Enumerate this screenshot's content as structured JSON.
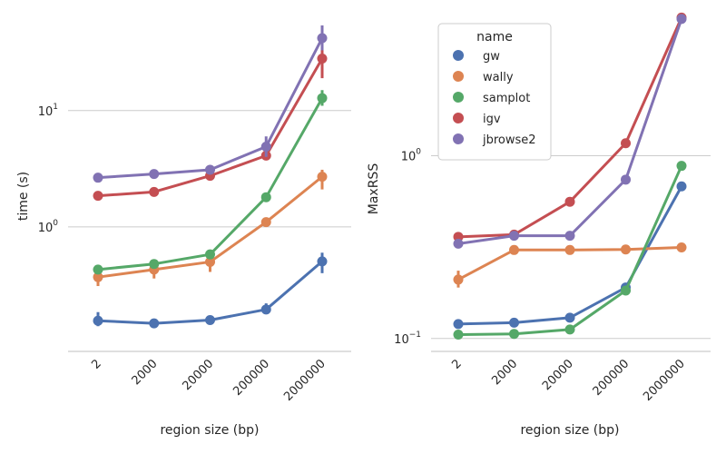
{
  "colors": {
    "gw": "#4c72b0",
    "wally": "#dd8452",
    "samplot": "#55a868",
    "igv": "#c44e52",
    "jbroswe2": "#8172b3",
    "grid": "#cccccc",
    "text": "#262626"
  },
  "chart_data": [
    {
      "type": "line",
      "scale": "log",
      "xlabel": "region size (bp)",
      "ylabel": "time (s)",
      "categories": [
        "2",
        "2000",
        "20000",
        "200000",
        "2000000"
      ],
      "ylim": [
        0.085,
        72
      ],
      "yticks": [
        {
          "value": 1,
          "base": "10",
          "exp": "0"
        },
        {
          "value": 10,
          "base": "10",
          "exp": "1"
        }
      ],
      "grid": "horizontal",
      "series": [
        {
          "name": "gw",
          "color": "#4c72b0",
          "values": [
            0.156,
            0.148,
            0.158,
            0.195,
            0.505
          ],
          "err": [
            [
              0.14,
              0.185
            ],
            null,
            null,
            [
              0.18,
              0.22
            ],
            [
              0.4,
              0.6
            ]
          ]
        },
        {
          "name": "wally",
          "color": "#dd8452",
          "values": [
            0.37,
            0.43,
            0.5,
            1.1,
            2.7
          ],
          "err": [
            [
              0.31,
              0.41
            ],
            [
              0.36,
              0.47
            ],
            [
              0.41,
              0.56
            ],
            [
              1.0,
              1.2
            ],
            [
              2.1,
              3.1
            ]
          ]
        },
        {
          "name": "samplot",
          "color": "#55a868",
          "values": [
            0.43,
            0.48,
            0.58,
            1.8,
            12.8
          ],
          "err": [
            null,
            null,
            null,
            null,
            [
              11.0,
              15.0
            ]
          ]
        },
        {
          "name": "igv",
          "color": "#c44e52",
          "values": [
            1.85,
            2.0,
            2.75,
            4.1,
            28.0
          ],
          "err": [
            null,
            null,
            [
              2.55,
              2.95
            ],
            [
              3.8,
              4.4
            ],
            [
              19.0,
              34.0
            ]
          ]
        },
        {
          "name": "jbrowse2",
          "color": "#8172b3",
          "values": [
            2.65,
            2.85,
            3.1,
            4.9,
            42.0
          ],
          "err": [
            null,
            null,
            [
              2.9,
              3.4
            ],
            [
              4.0,
              6.0
            ],
            [
              33.0,
              54.0
            ]
          ]
        }
      ]
    },
    {
      "type": "line",
      "scale": "log",
      "xlabel": "region size (bp)",
      "ylabel": "MaxRSS",
      "categories": [
        "2",
        "2000",
        "20000",
        "200000",
        "2000000"
      ],
      "ylim": [
        0.085,
        6.2
      ],
      "yticks": [
        {
          "value": 0.1,
          "base": "10",
          "exp": "−1"
        },
        {
          "value": 1,
          "base": "10",
          "exp": "0"
        }
      ],
      "grid": "horizontal",
      "series": [
        {
          "name": "gw",
          "color": "#4c72b0",
          "values": [
            0.12,
            0.122,
            0.13,
            0.19,
            0.68
          ],
          "err": [
            null,
            null,
            null,
            null,
            null
          ]
        },
        {
          "name": "wally",
          "color": "#dd8452",
          "values": [
            0.21,
            0.305,
            0.305,
            0.307,
            0.315
          ],
          "err": [
            [
              0.19,
              0.235
            ],
            null,
            null,
            null,
            null
          ]
        },
        {
          "name": "samplot",
          "color": "#55a868",
          "values": [
            0.105,
            0.106,
            0.112,
            0.183,
            0.88
          ],
          "err": [
            null,
            null,
            null,
            null,
            null
          ]
        },
        {
          "name": "igv",
          "color": "#c44e52",
          "values": [
            0.36,
            0.37,
            0.56,
            1.17,
            5.7
          ],
          "err": [
            null,
            null,
            null,
            null,
            null
          ]
        },
        {
          "name": "jbrowse2",
          "color": "#8172b3",
          "values": [
            0.33,
            0.365,
            0.365,
            0.74,
            5.6
          ],
          "err": [
            null,
            null,
            null,
            null,
            null
          ]
        }
      ]
    }
  ],
  "legend": {
    "title": "name",
    "placement": "top-left of right panel",
    "items": [
      "gw",
      "wally",
      "samplot",
      "igv",
      "jbrowse2"
    ]
  }
}
